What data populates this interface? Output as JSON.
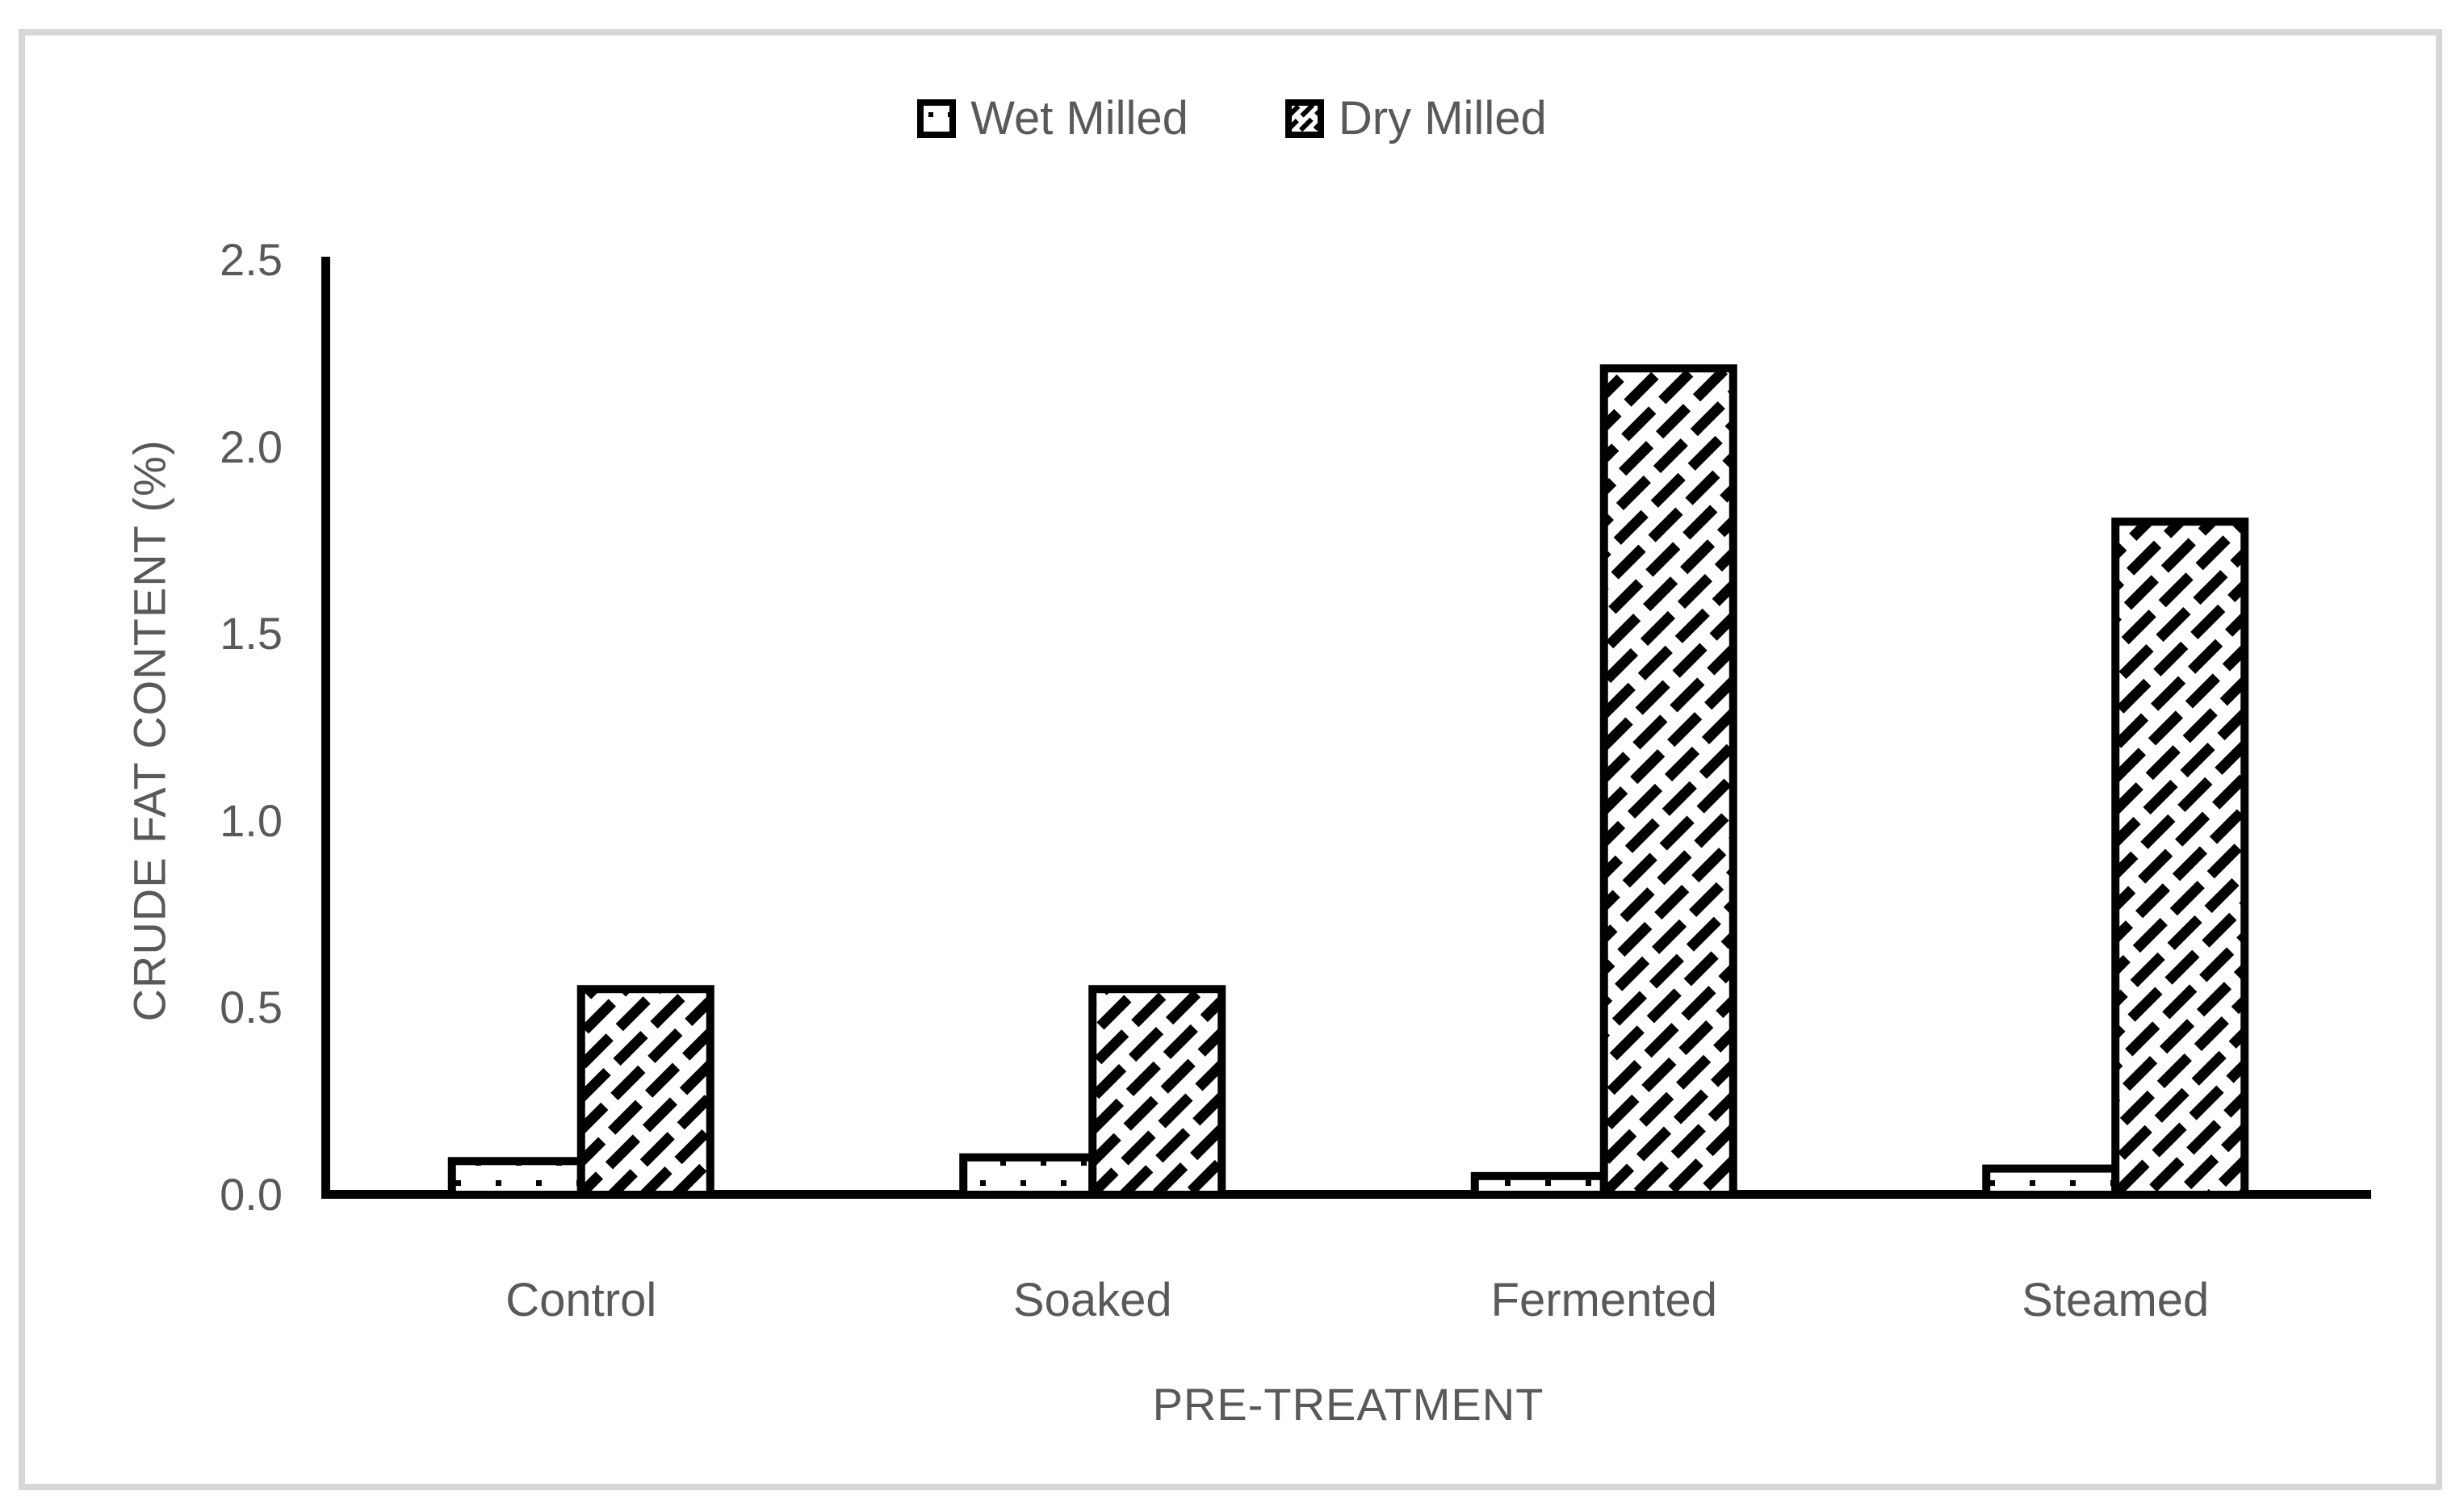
{
  "colors": {
    "text": "#595959",
    "axis": "#000000",
    "bar_border": "#000000",
    "bar_fill": "#ffffff",
    "frame_border": "#d7d7d7",
    "background": "#ffffff"
  },
  "legend": {
    "items": [
      {
        "label": "Wet Milled",
        "pattern": "dots"
      },
      {
        "label": "Dry Milled",
        "pattern": "diagonal-dashes"
      }
    ]
  },
  "chart_data": {
    "type": "bar",
    "title": "",
    "categories": [
      "Control",
      "Soaked",
      "Fermented",
      "Steamed"
    ],
    "series": [
      {
        "name": "Wet Milled",
        "pattern": "dots",
        "values": [
          0.09,
          0.1,
          0.05,
          0.07
        ]
      },
      {
        "name": "Dry Milled",
        "pattern": "diagonal-dashes",
        "values": [
          0.55,
          0.55,
          2.21,
          1.8
        ]
      }
    ],
    "xlabel": "PRE-TREATMENT",
    "ylabel": "CRUDE FAT CONTENT (%)",
    "ylim": [
      0,
      2.5
    ],
    "ytick_step": 0.5,
    "yticks": [
      "0.0",
      "0.5",
      "1.0",
      "1.5",
      "2.0",
      "2.5"
    ],
    "grid": false,
    "legend_position": "top-center"
  }
}
